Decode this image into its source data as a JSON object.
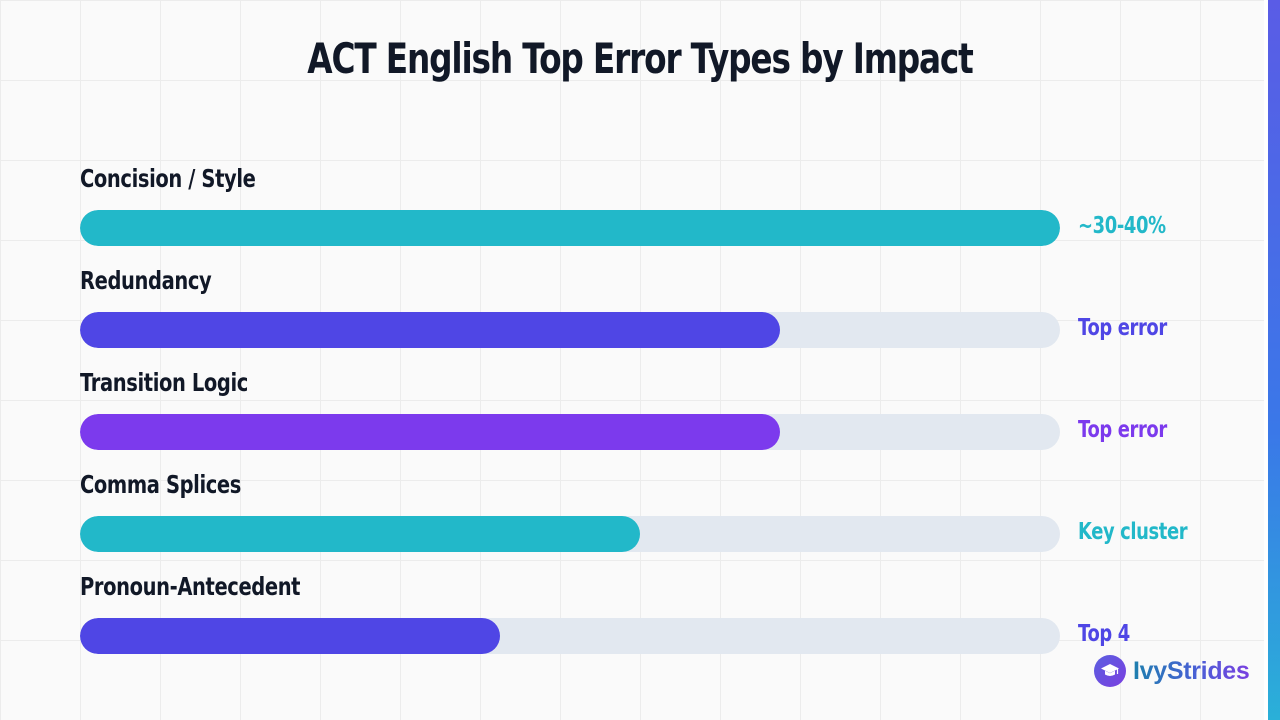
{
  "chart_data": {
    "type": "bar",
    "orientation": "horizontal",
    "title": "ACT English Top Error Types by Impact",
    "categories": [
      "Concision / Style",
      "Redundancy",
      "Transition Logic",
      "Comma Splices",
      "Pronoun-Antecedent"
    ],
    "values": [
      100,
      71.4,
      71.4,
      57.1,
      42.9
    ],
    "value_labels": [
      "~30-40%",
      "Top error",
      "Top error",
      "Key cluster",
      "Top 4"
    ],
    "bar_colors": [
      "#22b8c9",
      "#4f46e5",
      "#7c3aed",
      "#22b8c9",
      "#4f46e5"
    ],
    "track_color": "#e2e8f0",
    "xlim": [
      0,
      100
    ],
    "grid": true,
    "legend": "none"
  },
  "brand": {
    "name": "IvyStrides",
    "icon": "graduation-cap-icon"
  },
  "accent_color": "#4f46e5"
}
